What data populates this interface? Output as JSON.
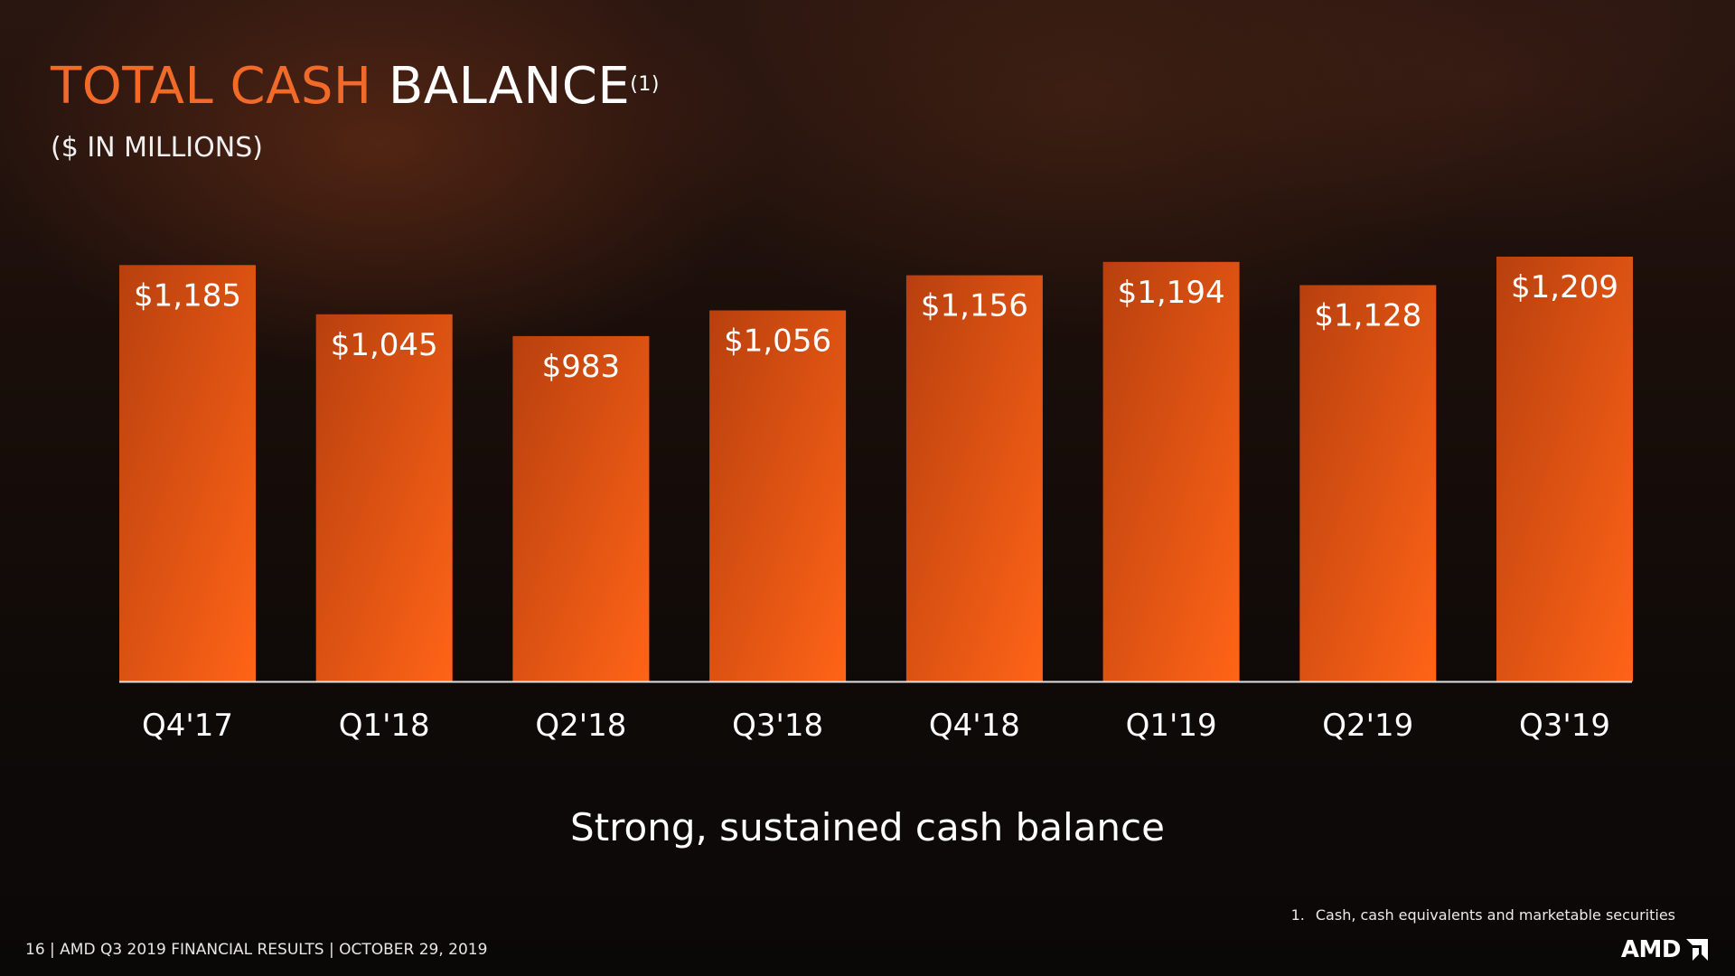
{
  "slide": {
    "title_accent": "TOTAL CASH",
    "title_main": "BALANCE",
    "title_footnote_ref": "(1)",
    "subtitle": "($ IN MILLIONS)",
    "caption": "Strong, sustained cash balance",
    "footnote_number": "1.",
    "footnote_text": "Cash, cash equivalents and marketable securities",
    "footer": "16 | AMD Q3 2019 FINANCIAL RESULTS | OCTOBER 29, 2019",
    "logo_text": "AMD"
  },
  "colors": {
    "accent": "#f26a2a",
    "bar_dark": "#b8400e",
    "bar_light": "#ff6417",
    "axis": "#e0e0e0"
  },
  "chart_data": {
    "type": "bar",
    "title": "TOTAL CASH BALANCE",
    "xlabel": "",
    "ylabel": "",
    "categories": [
      "Q4'17",
      "Q1'18",
      "Q2'18",
      "Q3'18",
      "Q4'18",
      "Q1'19",
      "Q2'19",
      "Q3'19"
    ],
    "values": [
      1185,
      1045,
      983,
      1056,
      1156,
      1194,
      1128,
      1209
    ],
    "data_labels": [
      "$1,185",
      "$1,045",
      "$983",
      "$1,056",
      "$1,156",
      "$1,194",
      "$1,128",
      "$1,209"
    ],
    "ylim": [
      0,
      1209
    ],
    "grid": false,
    "legend": "none"
  }
}
